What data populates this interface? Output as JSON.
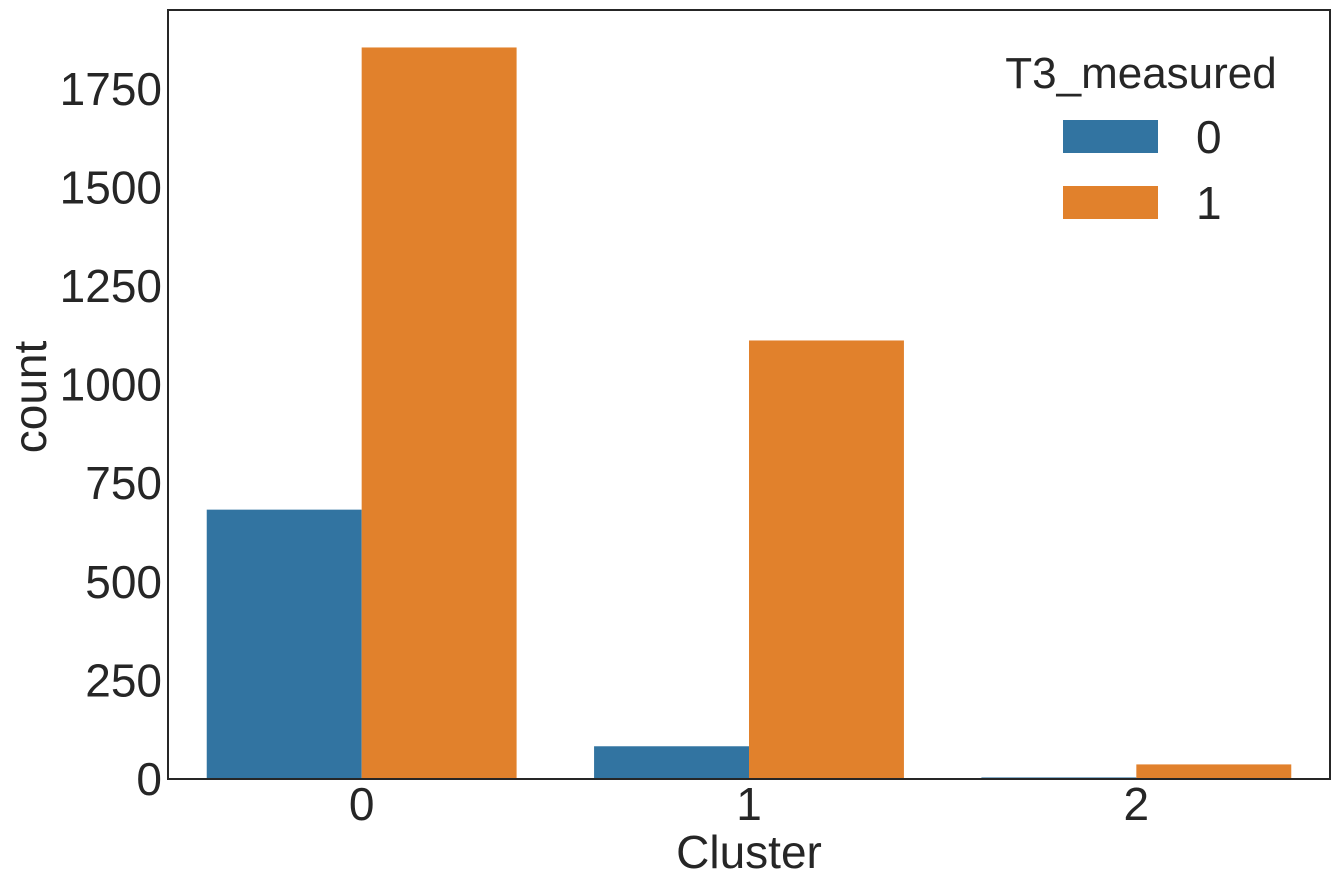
{
  "chart_data": {
    "type": "bar",
    "title": "",
    "xlabel": "Cluster",
    "ylabel": "count",
    "categories": [
      "0",
      "1",
      "2"
    ],
    "series": [
      {
        "name": "0",
        "color": "#3274a1",
        "values": [
          683,
          83,
          4
        ]
      },
      {
        "name": "1",
        "color": "#e1812c",
        "values": [
          1855,
          1112,
          37
        ]
      }
    ],
    "ylim": [
      0,
      1950
    ],
    "yticks": [
      0,
      250,
      500,
      750,
      1000,
      1250,
      1500,
      1750
    ],
    "grid": false,
    "legend": {
      "title": "T3_measured",
      "placement": "top-right"
    }
  }
}
